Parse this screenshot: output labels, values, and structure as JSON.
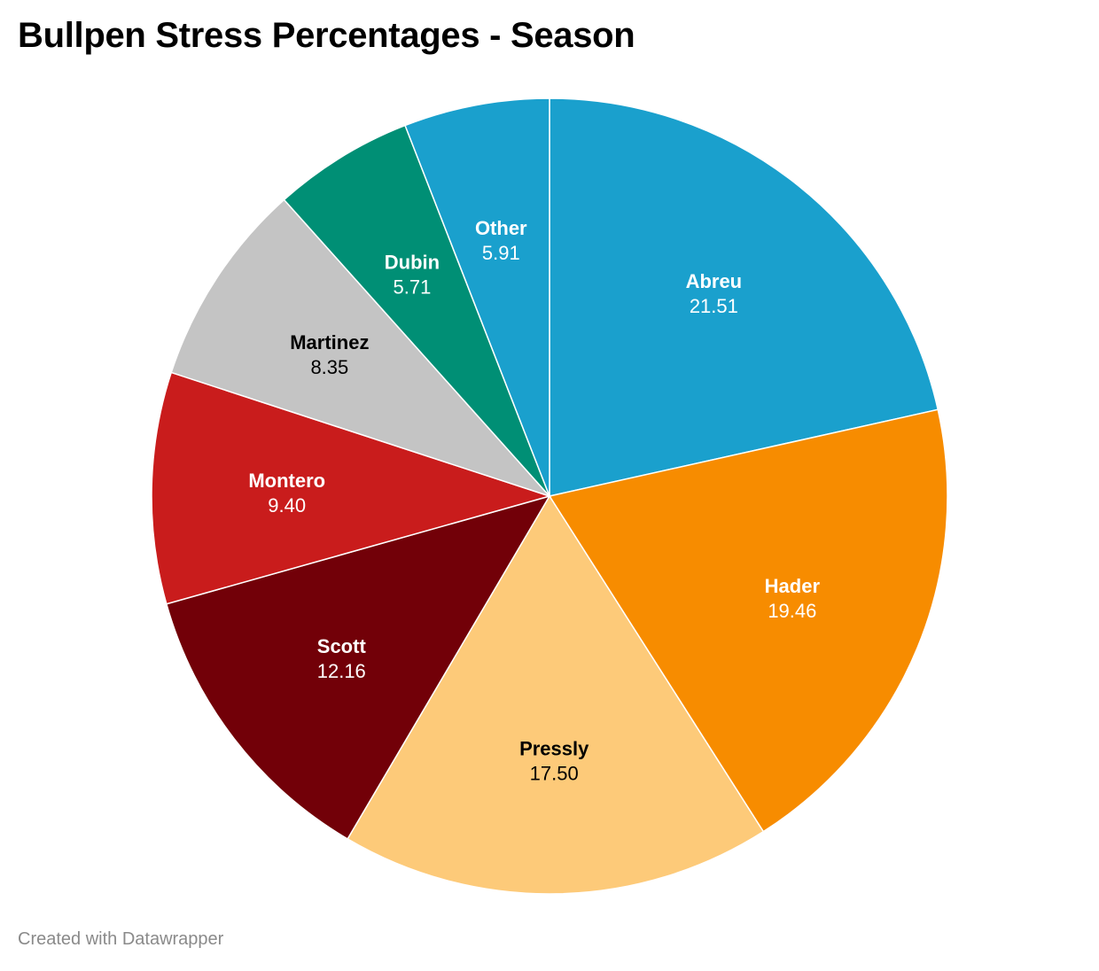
{
  "chart_data": {
    "type": "pie",
    "title": "Bullpen Stress Percentages - Season",
    "slices": [
      {
        "label": "Abreu",
        "value": 21.51,
        "display": "21.51",
        "color": "#1aa0cd",
        "text_color": "#ffffff"
      },
      {
        "label": "Hader",
        "value": 19.46,
        "display": "19.46",
        "color": "#f78c00",
        "text_color": "#ffffff"
      },
      {
        "label": "Pressly",
        "value": 17.5,
        "display": "17.50",
        "color": "#fdca79",
        "text_color": "#000000"
      },
      {
        "label": "Scott",
        "value": 12.16,
        "display": "12.16",
        "color": "#720008",
        "text_color": "#ffffff"
      },
      {
        "label": "Montero",
        "value": 9.4,
        "display": "9.40",
        "color": "#c91c1c",
        "text_color": "#ffffff"
      },
      {
        "label": "Martinez",
        "value": 8.35,
        "display": "8.35",
        "color": "#c4c4c4",
        "text_color": "#000000"
      },
      {
        "label": "Dubin",
        "value": 5.71,
        "display": "5.71",
        "color": "#008f75",
        "text_color": "#ffffff"
      },
      {
        "label": "Other",
        "value": 5.91,
        "display": "5.91",
        "color": "#1aa0cd",
        "text_color": "#ffffff"
      }
    ]
  },
  "footer": {
    "credit": "Created with Datawrapper"
  }
}
